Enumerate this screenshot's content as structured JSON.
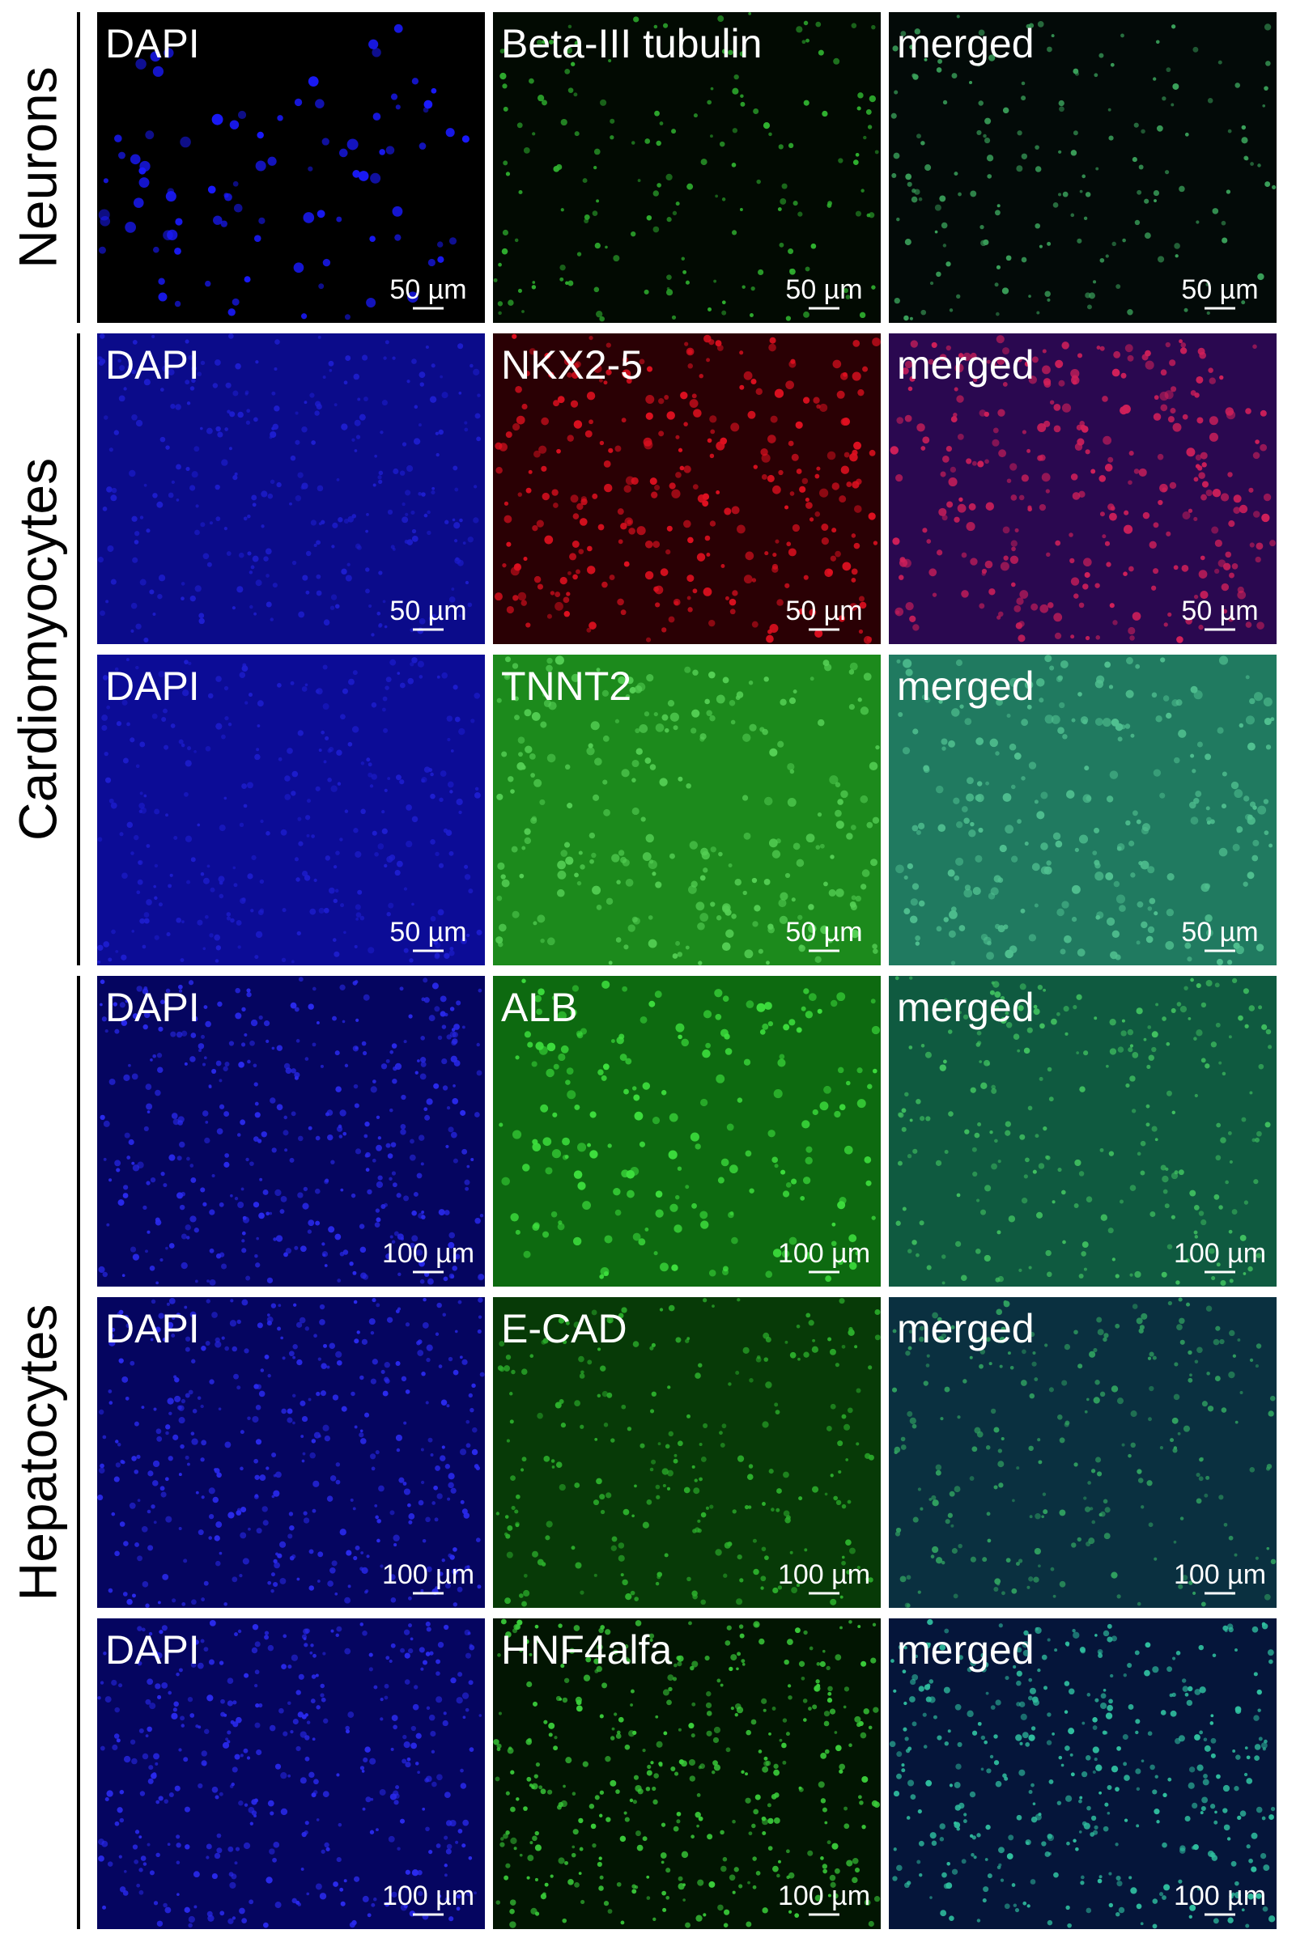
{
  "groups": [
    {
      "label": "Neurons",
      "rows": [
        {
          "panels": [
            {
              "label": "DAPI",
              "scale": "50 µm"
            },
            {
              "label": "Beta-III tubulin",
              "scale": "50 µm"
            },
            {
              "label": "merged",
              "scale": "50 µm"
            }
          ]
        }
      ]
    },
    {
      "label": "Cardiomyocytes",
      "rows": [
        {
          "panels": [
            {
              "label": "DAPI",
              "scale": "50 µm"
            },
            {
              "label": "NKX2-5",
              "scale": "50 µm"
            },
            {
              "label": "merged",
              "scale": "50 µm"
            }
          ]
        },
        {
          "panels": [
            {
              "label": "DAPI",
              "scale": "50 µm"
            },
            {
              "label": "TNNT2",
              "scale": "50 µm"
            },
            {
              "label": "merged",
              "scale": "50 µm"
            }
          ]
        }
      ]
    },
    {
      "label": "Hepatocytes",
      "rows": [
        {
          "panels": [
            {
              "label": "DAPI",
              "scale": "100 µm"
            },
            {
              "label": "ALB",
              "scale": "100 µm"
            },
            {
              "label": "merged",
              "scale": "100 µm"
            }
          ]
        },
        {
          "panels": [
            {
              "label": "DAPI",
              "scale": "100 µm"
            },
            {
              "label": "E-CAD",
              "scale": "100 µm"
            },
            {
              "label": "merged",
              "scale": "100 µm"
            }
          ]
        },
        {
          "panels": [
            {
              "label": "DAPI",
              "scale": "100 µm"
            },
            {
              "label": "HNF4alfa",
              "scale": "100 µm"
            },
            {
              "label": "merged",
              "scale": "100 µm"
            }
          ]
        }
      ]
    }
  ]
}
